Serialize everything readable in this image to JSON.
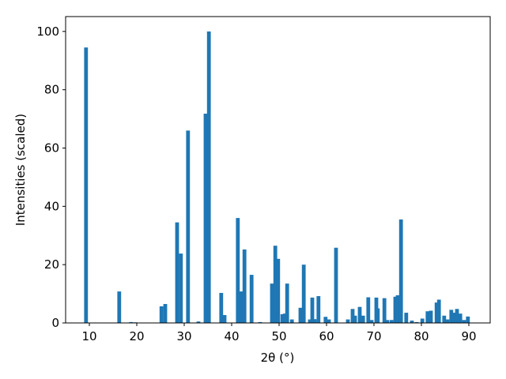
{
  "chart_data": {
    "type": "bar",
    "xlabel": "2θ (°)",
    "ylabel": "Intensities (scaled)",
    "x": [
      9.3,
      16.3,
      18.8,
      19.7,
      25.2,
      26.0,
      28.5,
      29.3,
      30.8,
      33.0,
      34.5,
      35.2,
      37.8,
      38.5,
      41.3,
      42.0,
      42.7,
      44.2,
      46.0,
      48.5,
      49.2,
      49.8,
      50.7,
      51.2,
      51.7,
      52.7,
      54.5,
      55.2,
      56.5,
      57.0,
      57.5,
      58.3,
      59.8,
      60.5,
      62.0,
      64.5,
      65.5,
      66.0,
      67.0,
      67.7,
      68.8,
      69.5,
      70.5,
      70.8,
      72.2,
      72.8,
      73.7,
      74.5,
      75.0,
      75.7,
      76.8,
      78.0,
      79.0,
      80.2,
      81.3,
      82.0,
      83.2,
      83.7,
      84.8,
      85.5,
      86.3,
      86.8,
      87.5,
      88.2,
      89.0,
      89.8
    ],
    "values": [
      94.5,
      10.8,
      0.3,
      0.2,
      5.7,
      6.5,
      34.5,
      23.8,
      66,
      0.5,
      71.8,
      100,
      10.3,
      2.7,
      36,
      10.8,
      25.2,
      16.5,
      0.3,
      13.5,
      26.5,
      22,
      3,
      3.2,
      13.5,
      1.2,
      5.2,
      20,
      1.2,
      8.7,
      1.3,
      9.2,
      2.1,
      1.2,
      25.8,
      1.2,
      4.8,
      2.5,
      5.5,
      2.5,
      8.8,
      1,
      8.7,
      5,
      8.5,
      1,
      1,
      9,
      9.5,
      35.5,
      3.5,
      0.8,
      0.3,
      1.5,
      4,
      4.2,
      7,
      8,
      2.5,
      1.2,
      4.5,
      3.5,
      4.8,
      3.2,
      1,
      2.2
    ],
    "color": "#1f77b4",
    "xlim": [
      5,
      94.5
    ],
    "ylim": [
      0,
      105.1
    ],
    "xticks": [
      10,
      20,
      30,
      40,
      50,
      60,
      70,
      80,
      90
    ],
    "yticks": [
      0,
      20,
      40,
      60,
      80,
      100
    ]
  }
}
